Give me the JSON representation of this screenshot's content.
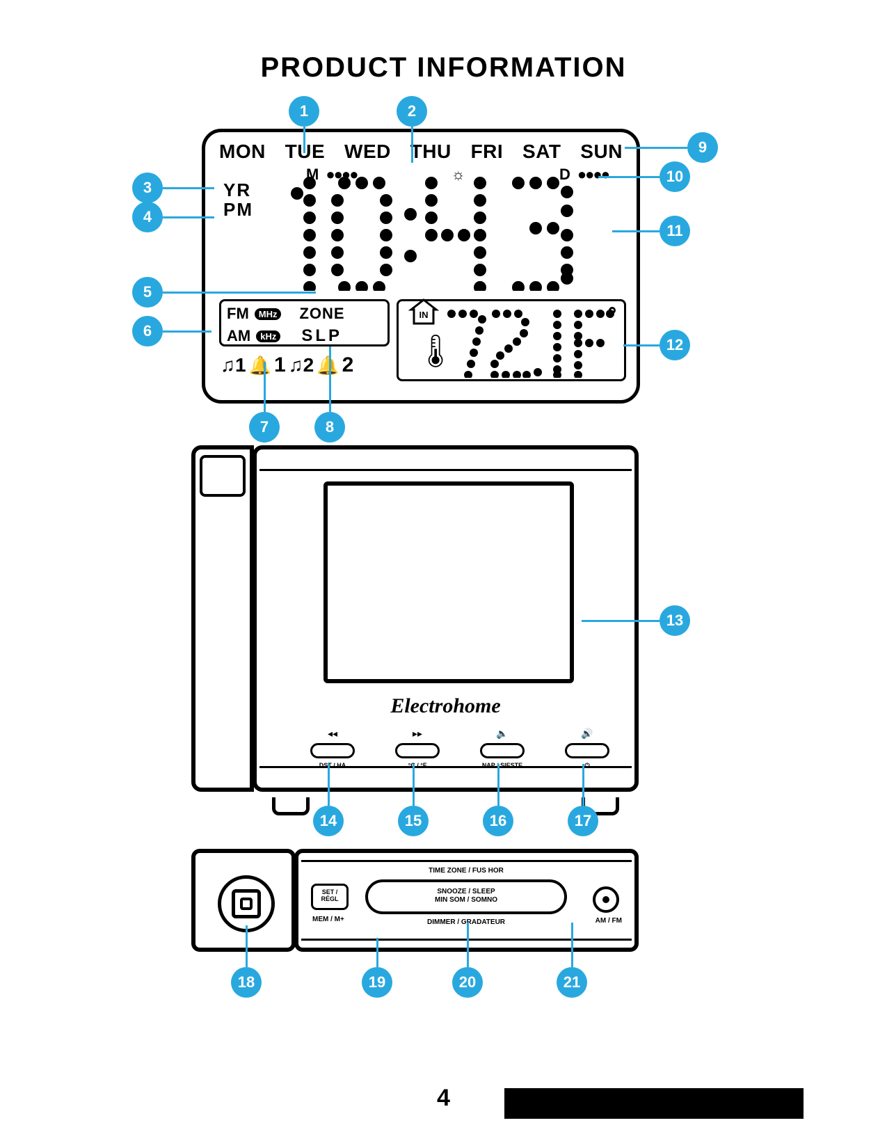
{
  "colors": {
    "accent": "#29a8df",
    "ink": "#000000",
    "bg": "#ffffff"
  },
  "title": "PRODUCT INFORMATION",
  "page_number": "4",
  "lcd": {
    "days": [
      "MON",
      "TUE",
      "WED",
      "THU",
      "FRI",
      "SAT",
      "SUN"
    ],
    "m_label": "M",
    "d_label": "D",
    "yr": "YR",
    "pm": "PM",
    "time_display": "10:43",
    "radio": {
      "fm": "FM",
      "fm_unit": "MHz",
      "am": "AM",
      "am_unit": "kHz",
      "zone": "ZONE",
      "slp": "SLP"
    },
    "alarm_row": {
      "a1_music": "♫1",
      "a1_bell": "1",
      "a2_music": "♫2",
      "a2_bell": "2"
    },
    "temp": {
      "in": "IN",
      "value": "72.1",
      "unit": "F"
    }
  },
  "front": {
    "brand": "Electrohome",
    "buttons": [
      {
        "icon": "◂◂",
        "label": "DST / HA"
      },
      {
        "icon": "▸▸",
        "label": "°C / °F"
      },
      {
        "icon": "🔈",
        "label": "NAP / SIESTE"
      },
      {
        "icon": "🔊",
        "label": "⏻"
      }
    ]
  },
  "top": {
    "set": "SET /\nRÉGL",
    "mem": "MEM / M+",
    "tz": "TIME ZONE / FUS HOR",
    "snooze": "SNOOZE / SLEEP\nMIN SOM / SOMNO",
    "dimmer": "DIMMER / GRADATEUR",
    "amfm": "AM / FM"
  },
  "callouts": {
    "1": "1",
    "2": "2",
    "3": "3",
    "4": "4",
    "5": "5",
    "6": "6",
    "7": "7",
    "8": "8",
    "9": "9",
    "10": "10",
    "11": "11",
    "12": "12",
    "13": "13",
    "14": "14",
    "15": "15",
    "16": "16",
    "17": "17",
    "18": "18",
    "19": "19",
    "20": "20",
    "21": "21"
  }
}
